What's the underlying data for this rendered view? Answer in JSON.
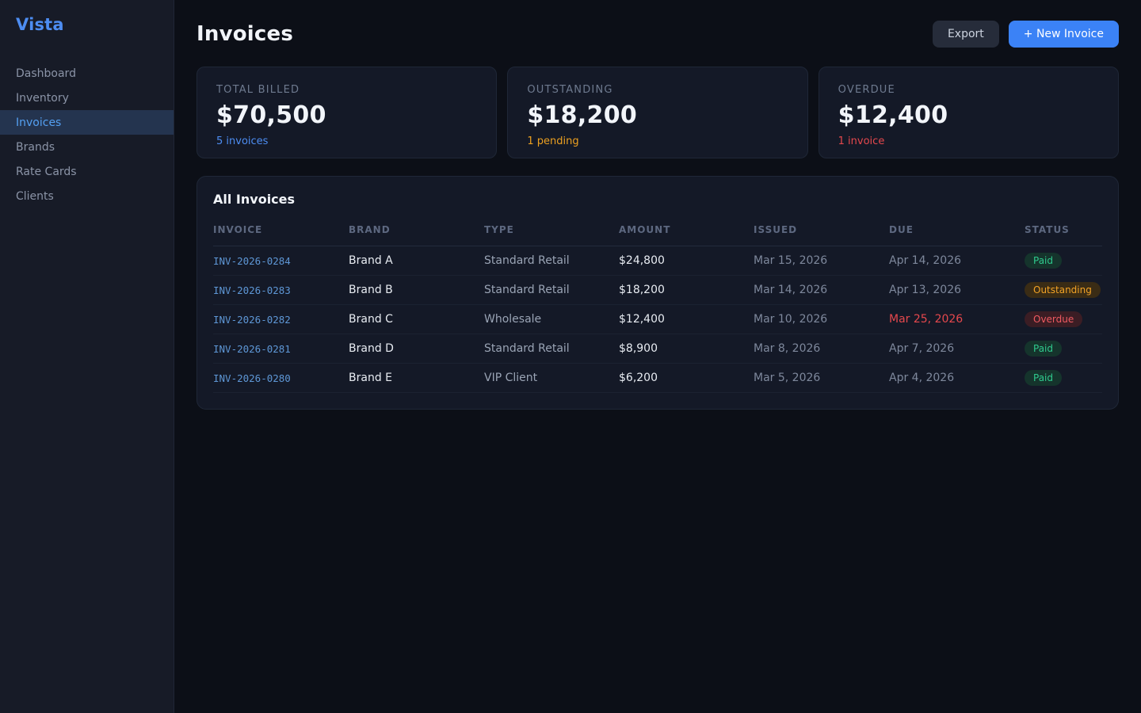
{
  "app": {
    "name": "Vista"
  },
  "sidebar": {
    "items": [
      {
        "label": "Dashboard",
        "active": false
      },
      {
        "label": "Inventory",
        "active": false
      },
      {
        "label": "Invoices",
        "active": true
      },
      {
        "label": "Brands",
        "active": false
      },
      {
        "label": "Rate Cards",
        "active": false
      },
      {
        "label": "Clients",
        "active": false
      }
    ]
  },
  "header": {
    "title": "Invoices",
    "export_label": "Export",
    "new_invoice_label": "+ New Invoice"
  },
  "stats": [
    {
      "label": "TOTAL BILLED",
      "value": "$70,500",
      "sub": "5 invoices",
      "sub_color": "#4d8df2"
    },
    {
      "label": "OUTSTANDING",
      "value": "$18,200",
      "sub": "1 pending",
      "sub_color": "#eca020"
    },
    {
      "label": "OVERDUE",
      "value": "$12,400",
      "sub": "1 invoice",
      "sub_color": "#e5484d"
    }
  ],
  "table": {
    "title": "All Invoices",
    "columns": [
      "INVOICE",
      "BRAND",
      "TYPE",
      "AMOUNT",
      "ISSUED",
      "DUE",
      "STATUS"
    ],
    "rows": [
      {
        "invoice": "INV-2026-0284",
        "brand": "Brand A",
        "type": "Standard Retail",
        "amount": "$24,800",
        "issued": "Mar 15, 2026",
        "due": "Apr 14, 2026",
        "due_overdue": false,
        "status": "Paid"
      },
      {
        "invoice": "INV-2026-0283",
        "brand": "Brand B",
        "type": "Standard Retail",
        "amount": "$18,200",
        "issued": "Mar 14, 2026",
        "due": "Apr 13, 2026",
        "due_overdue": false,
        "status": "Outstanding"
      },
      {
        "invoice": "INV-2026-0282",
        "brand": "Brand C",
        "type": "Wholesale",
        "amount": "$12,400",
        "issued": "Mar 10, 2026",
        "due": "Mar 25, 2026",
        "due_overdue": true,
        "status": "Overdue"
      },
      {
        "invoice": "INV-2026-0281",
        "brand": "Brand D",
        "type": "Standard Retail",
        "amount": "$8,900",
        "issued": "Mar 8, 2026",
        "due": "Apr 7, 2026",
        "due_overdue": false,
        "status": "Paid"
      },
      {
        "invoice": "INV-2026-0280",
        "brand": "Brand E",
        "type": "VIP Client",
        "amount": "$6,200",
        "issued": "Mar 5, 2026",
        "due": "Apr 4, 2026",
        "due_overdue": false,
        "status": "Paid"
      }
    ]
  },
  "colors": {
    "accent_blue": "#3b82f6",
    "link_blue": "#5e97d6",
    "status_paid": "#2fcb8e",
    "status_outstanding": "#f3a326",
    "status_overdue": "#ef5a61",
    "sidebar_bg": "#171b27",
    "page_bg": "#0c0f17",
    "card_bg": "#141927"
  }
}
